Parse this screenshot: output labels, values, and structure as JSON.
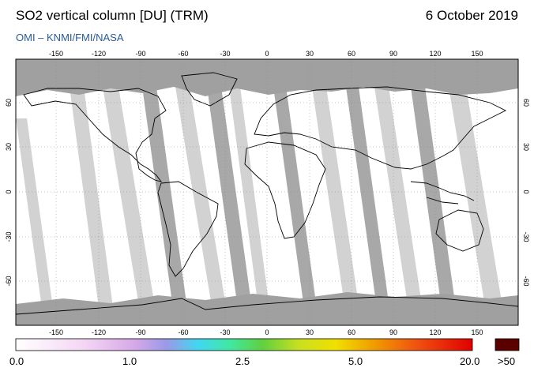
{
  "header": {
    "title": "SO2 vertical column [DU] (TRM)",
    "date": "6 October 2019",
    "credit": "OMI  –  KNMI/FMI/NASA"
  },
  "map": {
    "lon_ticks": [
      "-150",
      "-120",
      "-90",
      "-60",
      "-30",
      "0",
      "30",
      "60",
      "90",
      "120",
      "150"
    ],
    "lat_ticks": [
      "60",
      "30",
      "0",
      "-30",
      "-60"
    ],
    "colors": {
      "background": "#ffffff",
      "swath_gap": "#d2d2d2",
      "swath_edge": "#a8a8a8",
      "no_data": "#a0a0a0",
      "coastline": "#000000"
    }
  },
  "colorbar": {
    "labels": [
      "0.0",
      "1.0",
      "2.5",
      "5.0",
      "20.0",
      ">50"
    ],
    "overflow_color": "#5a0000"
  }
}
